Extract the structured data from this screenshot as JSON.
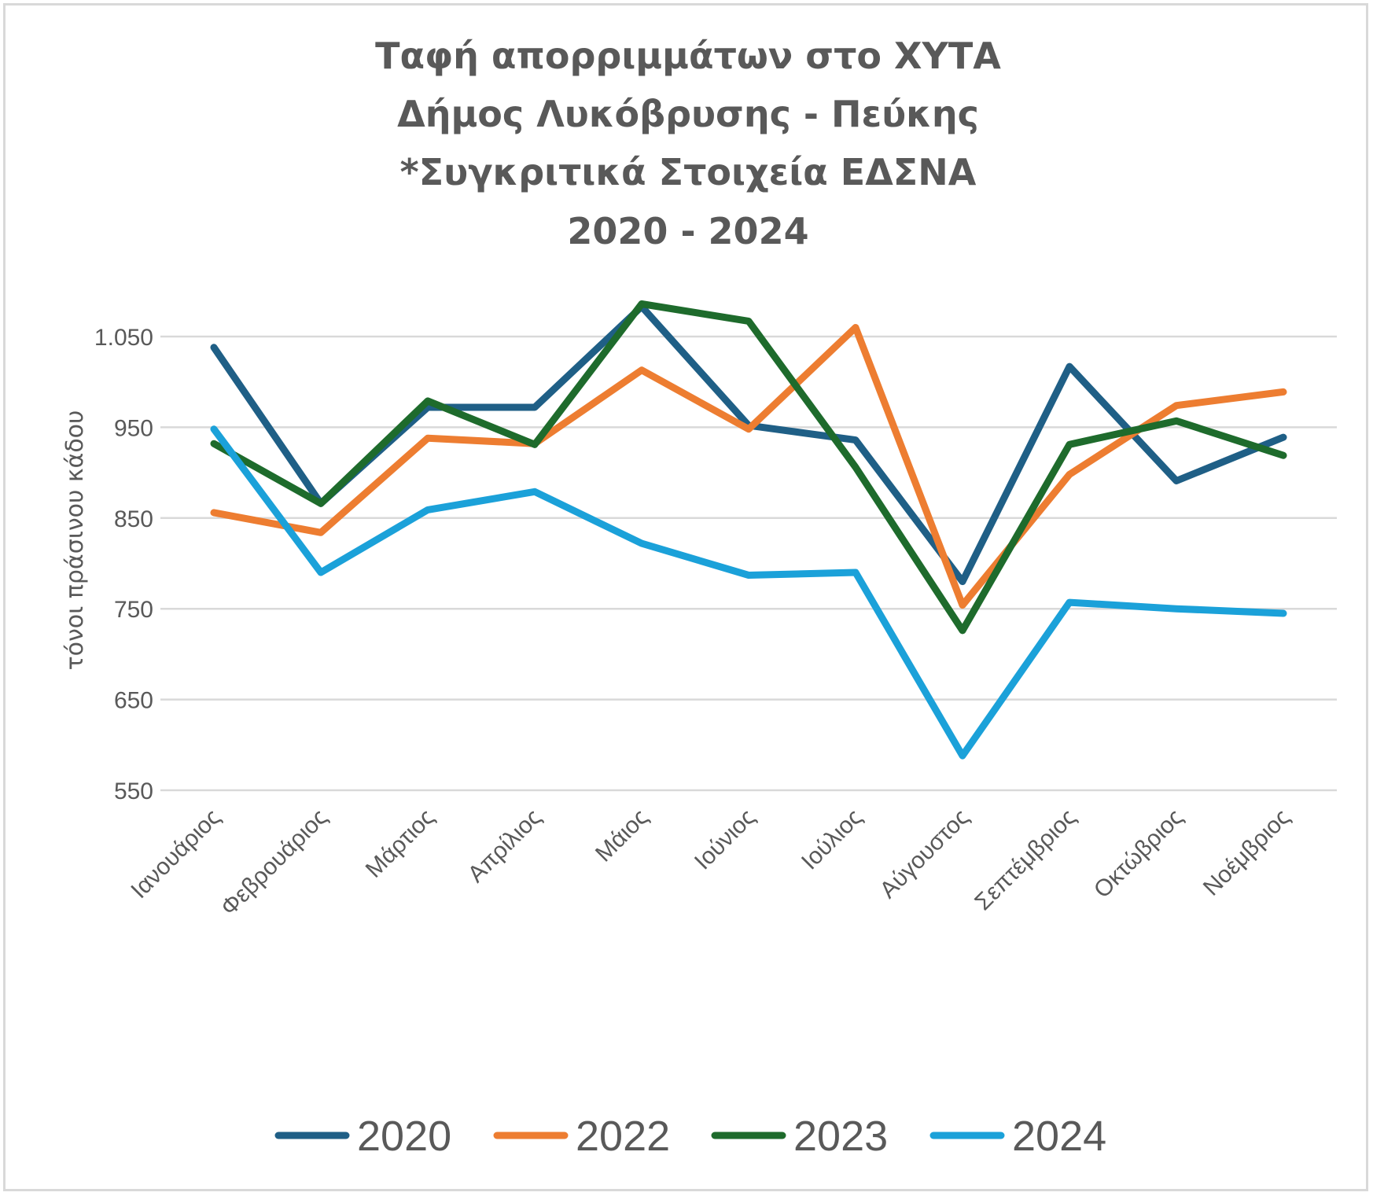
{
  "chart_data": {
    "type": "line",
    "title_lines": [
      "Ταφή απορριμμάτων στο ΧΥΤΑ",
      "Δήμος Λυκόβρυσης - Πεύκης",
      "*Συγκριτικά Στοιχεία ΕΔΣΝΑ",
      "2020 - 2024"
    ],
    "ylabel": "τόνοι πράσινου κάδου",
    "xlabel": "",
    "categories": [
      "Ιανουάριος",
      "Φεβρουάριος",
      "Μάρτιος",
      "Απρίλιος",
      "Μάιος",
      "Ιούνιος",
      "Ιούλιος",
      "Αύγουστος",
      "Σεπτέμβριος",
      "Οκτώβριος",
      "Νοέμβριος"
    ],
    "ylim": [
      550,
      1100
    ],
    "yticks": [
      550,
      650,
      750,
      850,
      950,
      1050
    ],
    "ytick_labels": [
      "550",
      "650",
      "750",
      "850",
      "950",
      "1.050"
    ],
    "grid": true,
    "legend_position": "bottom",
    "series": [
      {
        "name": "2020",
        "color": "#1f5f86",
        "values": [
          1038,
          866,
          972,
          972,
          1083,
          952,
          936,
          780,
          1017,
          891,
          939
        ]
      },
      {
        "name": "2022",
        "color": "#ed7d31",
        "values": [
          856,
          834,
          938,
          932,
          1013,
          948,
          1060,
          754,
          898,
          974,
          989
        ]
      },
      {
        "name": "2023",
        "color": "#1e6b2c",
        "values": [
          932,
          866,
          979,
          931,
          1086,
          1067,
          906,
          726,
          931,
          957,
          919
        ]
      },
      {
        "name": "2024",
        "color": "#1ba1d9",
        "values": [
          948,
          790,
          859,
          879,
          822,
          787,
          790,
          588,
          757,
          750,
          745
        ]
      }
    ]
  }
}
